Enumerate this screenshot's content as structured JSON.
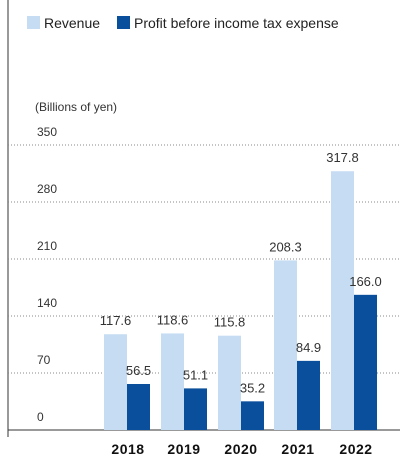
{
  "chart_data": {
    "type": "bar",
    "title": "",
    "xlabel": "",
    "ylabel": "(Billions of yen)",
    "categories": [
      "2018",
      "2019",
      "2020",
      "2021",
      "2022"
    ],
    "series": [
      {
        "name": "Revenue",
        "values": [
          117.6,
          118.6,
          115.8,
          208.3,
          317.8
        ],
        "color": "#c5dcf2"
      },
      {
        "name": "Profit before income tax expense",
        "values": [
          56.5,
          51.1,
          35.2,
          84.9,
          166.0
        ],
        "color": "#0a4f9c"
      }
    ],
    "yticks": [
      0,
      70,
      140,
      210,
      280,
      350
    ],
    "ylim": [
      0,
      350
    ],
    "grid": true,
    "legend_position": "top-left",
    "label_format": "one-decimal"
  }
}
